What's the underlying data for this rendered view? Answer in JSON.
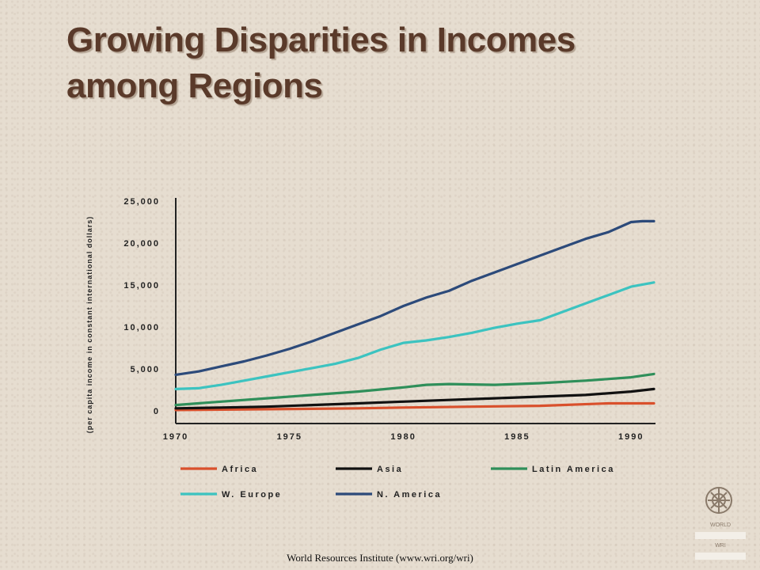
{
  "title_line1": "Growing Disparities in Incomes",
  "title_line2": "among Regions",
  "source": "World Resources Institute (www.wri.org/wri)",
  "logo": {
    "icon": "globe-emblem-icon",
    "text1": "WORLD",
    "text2": "WRI"
  },
  "colors": {
    "title": "#5a3a2a",
    "background": "#e6ddd0",
    "Africa": "#d9502c",
    "Asia": "#111111",
    "Latin America": "#2f8f5a",
    "W. Europe": "#3cc3c0",
    "N. America": "#2c4a7a"
  },
  "chart_data": {
    "type": "line",
    "ylabel": "(per capita income in constant international dollars)",
    "xlabel": "",
    "y_ticks": [
      0,
      5000,
      10000,
      15000,
      20000,
      25000
    ],
    "y_tick_labels": [
      "0",
      "5,000",
      "10,000",
      "15,000",
      "20,000",
      "25,000"
    ],
    "ylim": [
      0,
      25000
    ],
    "x_ticks": [
      1970,
      1975,
      1980,
      1985,
      1990
    ],
    "x_tick_labels": [
      "1970",
      "1975",
      "1980",
      "1985",
      "1990"
    ],
    "xlim": [
      1970,
      1991
    ],
    "legend_position": "bottom",
    "series": [
      {
        "name": "Africa",
        "x": [
          1970,
          1974,
          1978,
          1980,
          1983,
          1986,
          1989,
          1991
        ],
        "values": [
          100,
          200,
          300,
          400,
          500,
          600,
          900,
          900
        ]
      },
      {
        "name": "Asia",
        "x": [
          1970,
          1972,
          1974,
          1976,
          1978,
          1980,
          1982,
          1984,
          1986,
          1988,
          1990,
          1991
        ],
        "values": [
          300,
          400,
          500,
          700,
          900,
          1100,
          1300,
          1500,
          1700,
          1900,
          2300,
          2600
        ]
      },
      {
        "name": "Latin America",
        "x": [
          1970,
          1972,
          1974,
          1976,
          1978,
          1980,
          1981,
          1982,
          1984,
          1986,
          1988,
          1990,
          1991
        ],
        "values": [
          700,
          1100,
          1500,
          1900,
          2300,
          2800,
          3100,
          3200,
          3100,
          3300,
          3600,
          4000,
          4400
        ]
      },
      {
        "name": "W. Europe",
        "x": [
          1970,
          1971,
          1972,
          1973,
          1974,
          1975,
          1976,
          1977,
          1978,
          1979,
          1980,
          1981,
          1982,
          1983,
          1984,
          1985,
          1986,
          1987,
          1988,
          1989,
          1990,
          1991
        ],
        "values": [
          2600,
          2700,
          3100,
          3600,
          4100,
          4600,
          5100,
          5600,
          6300,
          7300,
          8100,
          8400,
          8800,
          9300,
          9900,
          10400,
          10800,
          11800,
          12800,
          13800,
          14800,
          15300
        ]
      },
      {
        "name": "N. America",
        "x": [
          1970,
          1971,
          1972,
          1973,
          1974,
          1975,
          1976,
          1977,
          1978,
          1979,
          1980,
          1981,
          1982,
          1983,
          1984,
          1985,
          1986,
          1987,
          1988,
          1989,
          1990,
          1990.5,
          1991
        ],
        "values": [
          4300,
          4700,
          5300,
          5900,
          6600,
          7400,
          8300,
          9300,
          10300,
          11300,
          12500,
          13500,
          14300,
          15500,
          16500,
          17500,
          18500,
          19500,
          20500,
          21300,
          22500,
          22600,
          22600
        ]
      }
    ]
  }
}
